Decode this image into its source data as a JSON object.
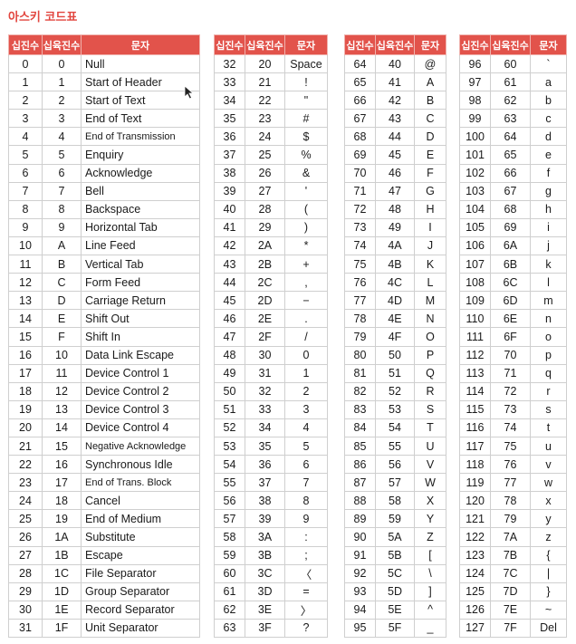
{
  "title": "아스키 코드표",
  "headers": {
    "dec": "십진수",
    "hex": "십육진수",
    "char": "문자"
  },
  "tables": [
    {
      "rows": [
        {
          "dec": "0",
          "hex": "0",
          "char": "Null"
        },
        {
          "dec": "1",
          "hex": "1",
          "char": "Start of Header"
        },
        {
          "dec": "2",
          "hex": "2",
          "char": "Start of Text"
        },
        {
          "dec": "3",
          "hex": "3",
          "char": "End of Text"
        },
        {
          "dec": "4",
          "hex": "4",
          "char": "End of Transmission"
        },
        {
          "dec": "5",
          "hex": "5",
          "char": "Enquiry"
        },
        {
          "dec": "6",
          "hex": "6",
          "char": "Acknowledge"
        },
        {
          "dec": "7",
          "hex": "7",
          "char": "Bell"
        },
        {
          "dec": "8",
          "hex": "8",
          "char": "Backspace"
        },
        {
          "dec": "9",
          "hex": "9",
          "char": "Horizontal Tab"
        },
        {
          "dec": "10",
          "hex": "A",
          "char": "Line Feed"
        },
        {
          "dec": "11",
          "hex": "B",
          "char": "Vertical Tab"
        },
        {
          "dec": "12",
          "hex": "C",
          "char": "Form Feed"
        },
        {
          "dec": "13",
          "hex": "D",
          "char": "Carriage Return"
        },
        {
          "dec": "14",
          "hex": "E",
          "char": "Shift Out"
        },
        {
          "dec": "15",
          "hex": "F",
          "char": "Shift In"
        },
        {
          "dec": "16",
          "hex": "10",
          "char": "Data Link Escape"
        },
        {
          "dec": "17",
          "hex": "11",
          "char": "Device Control 1"
        },
        {
          "dec": "18",
          "hex": "12",
          "char": "Device Control 2"
        },
        {
          "dec": "19",
          "hex": "13",
          "char": "Device Control 3"
        },
        {
          "dec": "20",
          "hex": "14",
          "char": "Device Control 4"
        },
        {
          "dec": "21",
          "hex": "15",
          "char": "Negative Acknowledge"
        },
        {
          "dec": "22",
          "hex": "16",
          "char": "Synchronous Idle"
        },
        {
          "dec": "23",
          "hex": "17",
          "char": "End of Trans. Block"
        },
        {
          "dec": "24",
          "hex": "18",
          "char": "Cancel"
        },
        {
          "dec": "25",
          "hex": "19",
          "char": "End of Medium"
        },
        {
          "dec": "26",
          "hex": "1A",
          "char": "Substitute"
        },
        {
          "dec": "27",
          "hex": "1B",
          "char": "Escape"
        },
        {
          "dec": "28",
          "hex": "1C",
          "char": "File Separator"
        },
        {
          "dec": "29",
          "hex": "1D",
          "char": "Group Separator"
        },
        {
          "dec": "30",
          "hex": "1E",
          "char": "Record Separator"
        },
        {
          "dec": "31",
          "hex": "1F",
          "char": "Unit Separator"
        }
      ]
    },
    {
      "rows": [
        {
          "dec": "32",
          "hex": "20",
          "char": "Space"
        },
        {
          "dec": "33",
          "hex": "21",
          "char": "!"
        },
        {
          "dec": "34",
          "hex": "22",
          "char": "\""
        },
        {
          "dec": "35",
          "hex": "23",
          "char": "#"
        },
        {
          "dec": "36",
          "hex": "24",
          "char": "$"
        },
        {
          "dec": "37",
          "hex": "25",
          "char": "%"
        },
        {
          "dec": "38",
          "hex": "26",
          "char": "&"
        },
        {
          "dec": "39",
          "hex": "27",
          "char": "'"
        },
        {
          "dec": "40",
          "hex": "28",
          "char": "("
        },
        {
          "dec": "41",
          "hex": "29",
          "char": ")"
        },
        {
          "dec": "42",
          "hex": "2A",
          "char": "*"
        },
        {
          "dec": "43",
          "hex": "2B",
          "char": "+"
        },
        {
          "dec": "44",
          "hex": "2C",
          "char": ","
        },
        {
          "dec": "45",
          "hex": "2D",
          "char": "−"
        },
        {
          "dec": "46",
          "hex": "2E",
          "char": "."
        },
        {
          "dec": "47",
          "hex": "2F",
          "char": "/"
        },
        {
          "dec": "48",
          "hex": "30",
          "char": "0"
        },
        {
          "dec": "49",
          "hex": "31",
          "char": "1"
        },
        {
          "dec": "50",
          "hex": "32",
          "char": "2"
        },
        {
          "dec": "51",
          "hex": "33",
          "char": "3"
        },
        {
          "dec": "52",
          "hex": "34",
          "char": "4"
        },
        {
          "dec": "53",
          "hex": "35",
          "char": "5"
        },
        {
          "dec": "54",
          "hex": "36",
          "char": "6"
        },
        {
          "dec": "55",
          "hex": "37",
          "char": "7"
        },
        {
          "dec": "56",
          "hex": "38",
          "char": "8"
        },
        {
          "dec": "57",
          "hex": "39",
          "char": "9"
        },
        {
          "dec": "58",
          "hex": "3A",
          "char": ":"
        },
        {
          "dec": "59",
          "hex": "3B",
          "char": ";"
        },
        {
          "dec": "60",
          "hex": "3C",
          "char": "〈"
        },
        {
          "dec": "61",
          "hex": "3D",
          "char": "="
        },
        {
          "dec": "62",
          "hex": "3E",
          "char": "〉"
        },
        {
          "dec": "63",
          "hex": "3F",
          "char": "?"
        }
      ]
    },
    {
      "rows": [
        {
          "dec": "64",
          "hex": "40",
          "char": "@"
        },
        {
          "dec": "65",
          "hex": "41",
          "char": "A"
        },
        {
          "dec": "66",
          "hex": "42",
          "char": "B"
        },
        {
          "dec": "67",
          "hex": "43",
          "char": "C"
        },
        {
          "dec": "68",
          "hex": "44",
          "char": "D"
        },
        {
          "dec": "69",
          "hex": "45",
          "char": "E"
        },
        {
          "dec": "70",
          "hex": "46",
          "char": "F"
        },
        {
          "dec": "71",
          "hex": "47",
          "char": "G"
        },
        {
          "dec": "72",
          "hex": "48",
          "char": "H"
        },
        {
          "dec": "73",
          "hex": "49",
          "char": "I"
        },
        {
          "dec": "74",
          "hex": "4A",
          "char": "J"
        },
        {
          "dec": "75",
          "hex": "4B",
          "char": "K"
        },
        {
          "dec": "76",
          "hex": "4C",
          "char": "L"
        },
        {
          "dec": "77",
          "hex": "4D",
          "char": "M"
        },
        {
          "dec": "78",
          "hex": "4E",
          "char": "N"
        },
        {
          "dec": "79",
          "hex": "4F",
          "char": "O"
        },
        {
          "dec": "80",
          "hex": "50",
          "char": "P"
        },
        {
          "dec": "81",
          "hex": "51",
          "char": "Q"
        },
        {
          "dec": "82",
          "hex": "52",
          "char": "R"
        },
        {
          "dec": "83",
          "hex": "53",
          "char": "S"
        },
        {
          "dec": "84",
          "hex": "54",
          "char": "T"
        },
        {
          "dec": "85",
          "hex": "55",
          "char": "U"
        },
        {
          "dec": "86",
          "hex": "56",
          "char": "V"
        },
        {
          "dec": "87",
          "hex": "57",
          "char": "W"
        },
        {
          "dec": "88",
          "hex": "58",
          "char": "X"
        },
        {
          "dec": "89",
          "hex": "59",
          "char": "Y"
        },
        {
          "dec": "90",
          "hex": "5A",
          "char": "Z"
        },
        {
          "dec": "91",
          "hex": "5B",
          "char": "["
        },
        {
          "dec": "92",
          "hex": "5C",
          "char": "\\"
        },
        {
          "dec": "93",
          "hex": "5D",
          "char": "]"
        },
        {
          "dec": "94",
          "hex": "5E",
          "char": "^"
        },
        {
          "dec": "95",
          "hex": "5F",
          "char": "_"
        }
      ]
    },
    {
      "rows": [
        {
          "dec": "96",
          "hex": "60",
          "char": "`"
        },
        {
          "dec": "97",
          "hex": "61",
          "char": "a"
        },
        {
          "dec": "98",
          "hex": "62",
          "char": "b"
        },
        {
          "dec": "99",
          "hex": "63",
          "char": "c"
        },
        {
          "dec": "100",
          "hex": "64",
          "char": "d"
        },
        {
          "dec": "101",
          "hex": "65",
          "char": "e"
        },
        {
          "dec": "102",
          "hex": "66",
          "char": "f"
        },
        {
          "dec": "103",
          "hex": "67",
          "char": "g"
        },
        {
          "dec": "104",
          "hex": "68",
          "char": "h"
        },
        {
          "dec": "105",
          "hex": "69",
          "char": "i"
        },
        {
          "dec": "106",
          "hex": "6A",
          "char": "j"
        },
        {
          "dec": "107",
          "hex": "6B",
          "char": "k"
        },
        {
          "dec": "108",
          "hex": "6C",
          "char": "l"
        },
        {
          "dec": "109",
          "hex": "6D",
          "char": "m"
        },
        {
          "dec": "110",
          "hex": "6E",
          "char": "n"
        },
        {
          "dec": "111",
          "hex": "6F",
          "char": "o"
        },
        {
          "dec": "112",
          "hex": "70",
          "char": "p"
        },
        {
          "dec": "113",
          "hex": "71",
          "char": "q"
        },
        {
          "dec": "114",
          "hex": "72",
          "char": "r"
        },
        {
          "dec": "115",
          "hex": "73",
          "char": "s"
        },
        {
          "dec": "116",
          "hex": "74",
          "char": "t"
        },
        {
          "dec": "117",
          "hex": "75",
          "char": "u"
        },
        {
          "dec": "118",
          "hex": "76",
          "char": "v"
        },
        {
          "dec": "119",
          "hex": "77",
          "char": "w"
        },
        {
          "dec": "120",
          "hex": "78",
          "char": "x"
        },
        {
          "dec": "121",
          "hex": "79",
          "char": "y"
        },
        {
          "dec": "122",
          "hex": "7A",
          "char": "z"
        },
        {
          "dec": "123",
          "hex": "7B",
          "char": "{"
        },
        {
          "dec": "124",
          "hex": "7C",
          "char": "|"
        },
        {
          "dec": "125",
          "hex": "7D",
          "char": "}"
        },
        {
          "dec": "126",
          "hex": "7E",
          "char": "~"
        },
        {
          "dec": "127",
          "hex": "7F",
          "char": "Del"
        }
      ]
    }
  ],
  "colors": {
    "header_bg": "#e2534b",
    "title": "#e2463f"
  },
  "cursor_icon": "mouse-pointer-icon"
}
